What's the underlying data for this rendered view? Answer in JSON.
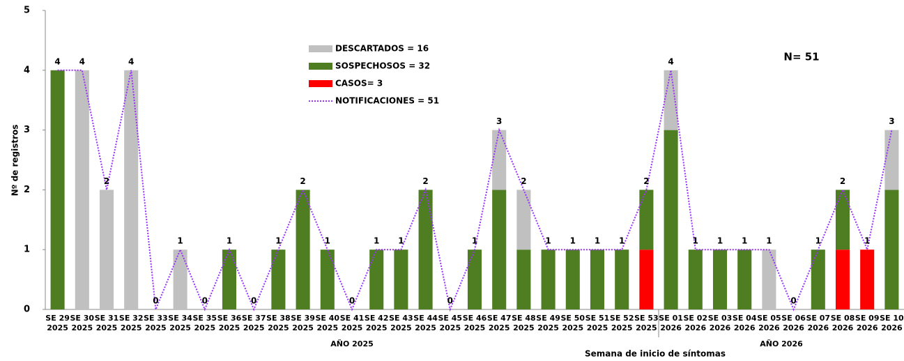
{
  "chart_data": {
    "type": "bar",
    "stacked": true,
    "y_label": "Nº de registros",
    "x_label": "Semana de inicio de síntomas",
    "annotation": "N= 51",
    "categories": [
      "SE 29",
      "SE 30",
      "SE 31",
      "SE 32",
      "SE 33",
      "SE 34",
      "SE 35",
      "SE 36",
      "SE 37",
      "SE 38",
      "SE 39",
      "SE 40",
      "SE 41",
      "SE 42",
      "SE 43",
      "SE 44",
      "SE 45",
      "SE 46",
      "SE 47",
      "SE 48",
      "SE 49",
      "SE 50",
      "SE 51",
      "SE 52",
      "SE 53",
      "SE 01",
      "SE 02",
      "SE 03",
      "SE 04",
      "SE 05",
      "SE 06",
      "SE 07",
      "SE 08",
      "SE 09",
      "SE 10"
    ],
    "category_years": [
      "2025",
      "2025",
      "2025",
      "2025",
      "2025",
      "2025",
      "2025",
      "2025",
      "2025",
      "2025",
      "2025",
      "2025",
      "2025",
      "2025",
      "2025",
      "2025",
      "2025",
      "2025",
      "2025",
      "2025",
      "2025",
      "2025",
      "2025",
      "2025",
      "2025",
      "2026",
      "2026",
      "2026",
      "2026",
      "2026",
      "2026",
      "2026",
      "2026",
      "2026",
      "2026"
    ],
    "groups": [
      {
        "label": "AÑO 2025",
        "count": 25
      },
      {
        "label": "AÑO 2026",
        "count": 10
      }
    ],
    "series": [
      {
        "name": "CASOS= 3",
        "color": "#ff0000",
        "type": "bar",
        "values": [
          0,
          0,
          0,
          0,
          0,
          0,
          0,
          0,
          0,
          0,
          0,
          0,
          0,
          0,
          0,
          0,
          0,
          0,
          0,
          0,
          0,
          0,
          0,
          0,
          1,
          0,
          0,
          0,
          0,
          0,
          0,
          0,
          1,
          1,
          0
        ]
      },
      {
        "name": "SOSPECHOSOS = 32",
        "color": "#4e7d22",
        "type": "bar",
        "values": [
          4,
          0,
          0,
          0,
          0,
          0,
          0,
          1,
          0,
          1,
          2,
          1,
          0,
          1,
          1,
          2,
          0,
          1,
          2,
          1,
          1,
          1,
          1,
          1,
          1,
          3,
          1,
          1,
          1,
          0,
          0,
          1,
          1,
          0,
          2
        ]
      },
      {
        "name": "DESCARTADOS = 16",
        "color": "#c0c0c0",
        "type": "bar",
        "values": [
          0,
          4,
          2,
          4,
          0,
          1,
          0,
          0,
          0,
          0,
          0,
          0,
          0,
          0,
          0,
          0,
          0,
          0,
          1,
          1,
          0,
          0,
          0,
          0,
          0,
          1,
          0,
          0,
          0,
          1,
          0,
          0,
          0,
          0,
          1
        ]
      },
      {
        "name": "NOTIFICACIONES = 51",
        "color": "#9b30ff",
        "type": "line",
        "values": [
          4,
          4,
          2,
          4,
          0,
          1,
          0,
          1,
          0,
          1,
          2,
          1,
          0,
          1,
          1,
          2,
          0,
          1,
          3,
          2,
          1,
          1,
          1,
          1,
          2,
          4,
          1,
          1,
          1,
          1,
          0,
          1,
          2,
          1,
          3
        ]
      }
    ],
    "legend_order": [
      2,
      1,
      0,
      3
    ],
    "ylim": [
      0,
      5
    ],
    "yticks": [
      0,
      1,
      2,
      3,
      4,
      5
    ],
    "grid": false
  }
}
